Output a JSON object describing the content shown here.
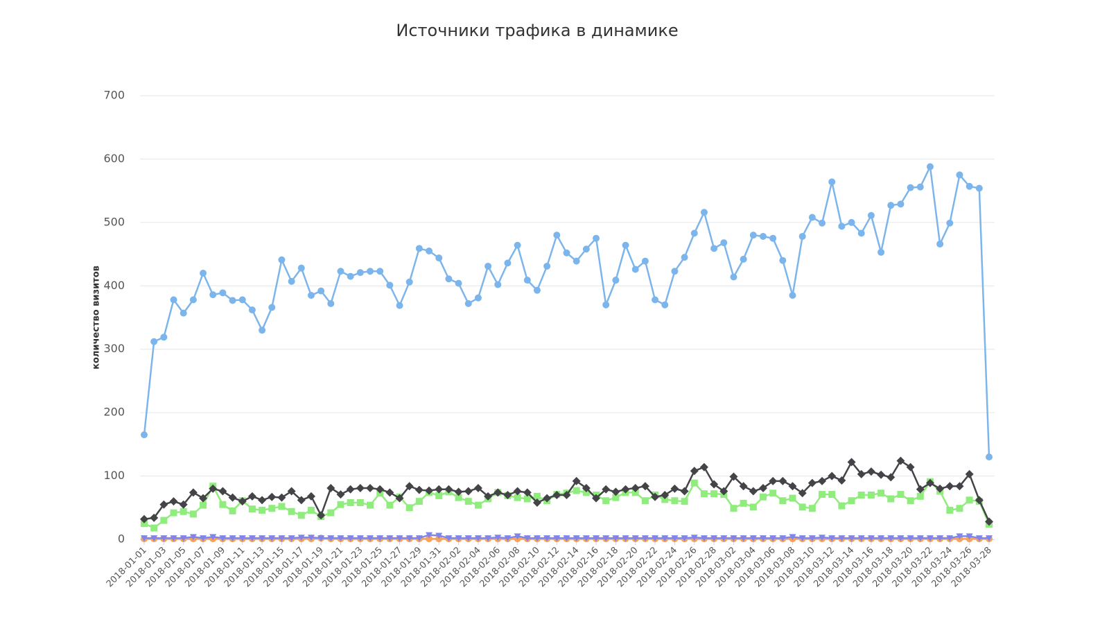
{
  "chart_data": {
    "type": "line",
    "title": "Источники трафика в динамике",
    "y_label": "количество визитов",
    "categories": [
      "2018-01-01",
      null,
      "2018-01-03",
      null,
      "2018-01-05",
      null,
      "2018-01-07",
      null,
      "2018-01-09",
      null,
      "2018-01-11",
      null,
      "2018-01-13",
      null,
      "2018-01-15",
      null,
      "2018-01-17",
      null,
      "2018-01-19",
      null,
      "2018-01-21",
      null,
      "2018-01-23",
      null,
      "2018-01-25",
      null,
      "2018-01-27",
      null,
      "2018-01-29",
      null,
      "2018-01-31",
      null,
      "2018-02-02",
      null,
      "2018-02-04",
      null,
      "2018-02-06",
      null,
      "2018-02-08",
      null,
      "2018-02-10",
      null,
      "2018-02-12",
      null,
      "2018-02-14",
      null,
      "2018-02-16",
      null,
      "2018-02-18",
      null,
      "2018-02-20",
      null,
      "2018-02-22",
      null,
      "2018-02-24",
      null,
      "2018-02-26",
      null,
      "2018-02-28",
      null,
      "2018-03-02",
      null,
      "2018-03-04",
      null,
      "2018-03-06",
      null,
      "2018-03-08",
      null,
      "2018-03-10",
      null,
      "2018-03-12",
      null,
      "2018-03-14",
      null,
      "2018-03-16",
      null,
      "2018-03-18",
      null,
      "2018-03-20",
      null,
      "2018-03-22",
      null,
      "2018-03-24",
      null,
      "2018-03-26",
      null,
      "2018-03-28"
    ],
    "series": [
      {
        "color": "#7cb5ec",
        "marker": "circle",
        "values": [
          165,
          312,
          319,
          378,
          357,
          378,
          420,
          386,
          389,
          377,
          378,
          362,
          330,
          366,
          441,
          407,
          428,
          385,
          392,
          372,
          423,
          415,
          421,
          423,
          423,
          401,
          369,
          406,
          459,
          455,
          444,
          411,
          404,
          372,
          381,
          431,
          402,
          436,
          464,
          409,
          393,
          431,
          480,
          452,
          439,
          458,
          475,
          370,
          409,
          464,
          426,
          439,
          378,
          370,
          423,
          445,
          483,
          516,
          459,
          468,
          414,
          442,
          480,
          478,
          475,
          440,
          385,
          478,
          508,
          499,
          564,
          494,
          500,
          483,
          511,
          453,
          527,
          529,
          555,
          556,
          588,
          466,
          499,
          575,
          557,
          554,
          130
        ]
      },
      {
        "color": "#434348",
        "marker": "diamond",
        "values": [
          32,
          34,
          55,
          60,
          55,
          74,
          65,
          80,
          76,
          66,
          60,
          68,
          62,
          67,
          66,
          76,
          62,
          68,
          38,
          81,
          71,
          79,
          81,
          81,
          79,
          74,
          65,
          84,
          78,
          77,
          79,
          79,
          75,
          76,
          81,
          68,
          74,
          70,
          76,
          74,
          58,
          65,
          70,
          70,
          92,
          81,
          65,
          79,
          75,
          79,
          81,
          84,
          67,
          70,
          80,
          76,
          108,
          114,
          87,
          76,
          99,
          84,
          76,
          81,
          92,
          92,
          84,
          73,
          89,
          92,
          100,
          93,
          122,
          103,
          107,
          102,
          98,
          124,
          114,
          79,
          89,
          80,
          84,
          84,
          103,
          62,
          28
        ]
      },
      {
        "color": "#90ed7d",
        "marker": "square",
        "values": [
          25,
          18,
          30,
          42,
          44,
          40,
          54,
          84,
          55,
          45,
          61,
          48,
          46,
          49,
          52,
          44,
          38,
          46,
          36,
          42,
          55,
          58,
          58,
          54,
          73,
          54,
          67,
          50,
          60,
          74,
          69,
          75,
          66,
          60,
          54,
          64,
          74,
          69,
          66,
          64,
          68,
          61,
          71,
          73,
          77,
          74,
          70,
          61,
          66,
          74,
          74,
          61,
          70,
          63,
          61,
          60,
          89,
          72,
          72,
          71,
          49,
          57,
          51,
          67,
          73,
          61,
          65,
          51,
          49,
          71,
          71,
          53,
          61,
          70,
          70,
          73,
          64,
          71,
          61,
          68,
          91,
          76,
          46,
          49,
          62,
          60,
          24
        ]
      },
      {
        "color": "#8085e9",
        "marker": "triangle-down",
        "values": [
          2,
          2,
          2,
          2,
          2,
          4,
          2,
          4,
          2,
          2,
          2,
          2,
          2,
          2,
          2,
          2,
          3,
          3,
          2,
          2,
          2,
          2,
          2,
          2,
          2,
          2,
          2,
          2,
          2,
          7,
          6,
          2,
          2,
          2,
          2,
          2,
          3,
          2,
          5,
          2,
          2,
          2,
          2,
          2,
          2,
          2,
          2,
          2,
          2,
          2,
          2,
          2,
          2,
          2,
          2,
          2,
          3,
          2,
          2,
          2,
          2,
          2,
          2,
          2,
          2,
          2,
          4,
          2,
          2,
          3,
          2,
          2,
          2,
          2,
          2,
          2,
          2,
          2,
          2,
          2,
          2,
          2,
          2,
          5,
          5,
          2,
          2
        ]
      },
      {
        "color": "#f7a35c",
        "marker": "circle",
        "values": [
          1,
          1,
          1,
          1,
          1,
          1,
          1,
          1,
          1,
          1,
          1,
          1,
          1,
          1,
          1,
          1,
          1,
          1,
          2,
          1,
          1,
          1,
          1,
          1,
          1,
          1,
          1,
          1,
          1,
          1,
          1,
          1,
          1,
          1,
          1,
          1,
          1,
          1,
          1,
          1,
          1,
          1,
          1,
          1,
          1,
          1,
          1,
          1,
          1,
          1,
          1,
          1,
          1,
          1,
          1,
          1,
          1,
          1,
          1,
          1,
          1,
          1,
          1,
          1,
          1,
          1,
          1,
          1,
          1,
          1,
          1,
          1,
          1,
          1,
          1,
          1,
          1,
          1,
          1,
          1,
          1,
          1,
          1,
          1,
          1,
          1,
          1
        ]
      }
    ],
    "ylim": [
      0,
      700
    ],
    "yticks": [
      0,
      100,
      200,
      300,
      400,
      500,
      600,
      700
    ],
    "grid": true
  }
}
